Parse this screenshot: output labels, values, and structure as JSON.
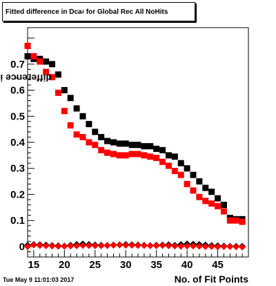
{
  "chart_data": {
    "type": "scatter",
    "title": "Fitted difference in Dca",
    "title_subscript": "z",
    "title_suffix": " for Global Rec All NoHits",
    "xlabel": "No. of Fit Points",
    "ylabel": "difference in Dca",
    "ylabel_subscript": "z",
    "xlim": [
      14,
      50
    ],
    "ylim": [
      -0.04,
      0.84
    ],
    "x_ticks": [
      15,
      20,
      25,
      30,
      35,
      40,
      45
    ],
    "y_ticks": [
      0,
      0.1,
      0.2,
      0.3,
      0.4,
      0.5,
      0.6,
      0.7
    ],
    "y_tick_labels": [
      "0",
      "0.1",
      "0.2",
      "0.3",
      "0.4",
      "0.5",
      "0.6",
      "0.7"
    ],
    "grid": false,
    "series": [
      {
        "marker": "square",
        "color": "#000000",
        "x": [
          14,
          15,
          16,
          17,
          18,
          19,
          20,
          21,
          22,
          23,
          24,
          25,
          26,
          27,
          28,
          29,
          30,
          31,
          32,
          33,
          34,
          35,
          36,
          37,
          38,
          39,
          40,
          41,
          42,
          43,
          44,
          45,
          46,
          47,
          48,
          49
        ],
        "values": [
          0.73,
          0.72,
          0.72,
          0.71,
          0.7,
          0.66,
          0.6,
          0.57,
          0.53,
          0.5,
          0.47,
          0.44,
          0.42,
          0.405,
          0.4,
          0.395,
          0.395,
          0.39,
          0.39,
          0.385,
          0.385,
          0.375,
          0.37,
          0.35,
          0.345,
          0.32,
          0.3,
          0.275,
          0.25,
          0.225,
          0.21,
          0.185,
          0.16,
          0.11,
          0.105,
          0.105
        ]
      },
      {
        "marker": "square",
        "color": "#ff0000",
        "x": [
          14,
          15,
          16,
          17,
          18,
          19,
          20,
          21,
          22,
          23,
          24,
          25,
          26,
          27,
          28,
          29,
          30,
          31,
          32,
          33,
          34,
          35,
          36,
          37,
          38,
          39,
          40,
          41,
          42,
          43,
          44,
          45,
          46,
          47,
          48,
          49
        ],
        "values": [
          0.77,
          0.73,
          0.71,
          0.67,
          0.65,
          0.59,
          0.52,
          0.465,
          0.43,
          0.42,
          0.4,
          0.39,
          0.37,
          0.36,
          0.355,
          0.35,
          0.35,
          0.355,
          0.355,
          0.35,
          0.345,
          0.34,
          0.325,
          0.31,
          0.29,
          0.275,
          0.24,
          0.215,
          0.19,
          0.175,
          0.165,
          0.155,
          0.135,
          0.1,
          0.1,
          0.095
        ]
      },
      {
        "marker": "diamond",
        "color": "#000000",
        "x": [
          14,
          15,
          16,
          17,
          18,
          19,
          20,
          21,
          22,
          23,
          24,
          25,
          26,
          27,
          28,
          29,
          30,
          31,
          32,
          33,
          34,
          35,
          36,
          37,
          38,
          39,
          40,
          41,
          42,
          43,
          44,
          45,
          46,
          47,
          48,
          49
        ],
        "values": [
          0.005,
          0.008,
          0.007,
          0.006,
          0.004,
          0.003,
          0.002,
          0.005,
          0.008,
          0.01,
          0.008,
          0.006,
          0.005,
          0.004,
          0.006,
          0.007,
          0.008,
          0.007,
          0.006,
          0.005,
          0.004,
          0.005,
          0.006,
          0.007,
          0.005,
          0.008,
          0.01,
          0.009,
          0.008,
          0.006,
          0.004,
          0.003,
          0.002,
          0.001,
          0.001,
          0.001
        ]
      },
      {
        "marker": "diamond",
        "color": "#ff0000",
        "x": [
          14,
          15,
          16,
          17,
          18,
          19,
          20,
          21,
          22,
          23,
          24,
          25,
          26,
          27,
          28,
          29,
          30,
          31,
          32,
          33,
          34,
          35,
          36,
          37,
          38,
          39,
          40,
          41,
          42,
          43,
          44,
          45,
          46,
          47,
          48,
          49
        ],
        "values": [
          0.0,
          0.006,
          0.004,
          0.003,
          0.002,
          0.001,
          0.001,
          0.002,
          0.003,
          0.004,
          0.004,
          0.003,
          0.003,
          0.004,
          0.005,
          0.006,
          0.005,
          0.005,
          0.004,
          0.004,
          0.003,
          0.003,
          0.004,
          0.003,
          0.002,
          0.001,
          0.002,
          0.002,
          0.001,
          0.0,
          0.0,
          -0.001,
          0.0,
          0.0,
          -0.001,
          -0.002
        ]
      }
    ]
  },
  "footer": {
    "timestamp": "Tue May  9 11:01:03 2017"
  }
}
